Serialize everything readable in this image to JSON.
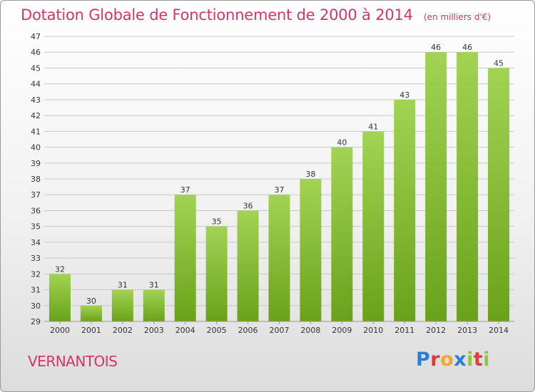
{
  "header": {
    "title": "Dotation Globale de Fonctionnement de 2000 à 2014",
    "subtitle": "(en milliers d'€)"
  },
  "footer": {
    "commune": "VERNANTOIS",
    "logo": "Proxiti",
    "logo_colors": [
      "#2a7fd4",
      "#e23a3a",
      "#f5a623",
      "#2a7fd4",
      "#8cc63f",
      "#e23a3a",
      "#8cc63f"
    ]
  },
  "colors": {
    "bar_top": "#a2d353",
    "bar_bottom": "#69a21a",
    "grid": "#c8c8c8",
    "axis_text": "#333333",
    "title": "#d6336c"
  },
  "chart_data": {
    "type": "bar",
    "categories": [
      "2000",
      "2001",
      "2002",
      "2003",
      "2004",
      "2005",
      "2006",
      "2007",
      "2008",
      "2009",
      "2010",
      "2011",
      "2012",
      "2013",
      "2014"
    ],
    "values": [
      32,
      30,
      31,
      31,
      37,
      35,
      36,
      37,
      38,
      40,
      41,
      43,
      46,
      46,
      45
    ],
    "ylim": [
      29,
      47
    ],
    "yticks": [
      29,
      30,
      31,
      32,
      33,
      34,
      35,
      36,
      37,
      38,
      39,
      40,
      41,
      42,
      43,
      44,
      45,
      46,
      47
    ],
    "grid": true,
    "data_labels": true
  }
}
